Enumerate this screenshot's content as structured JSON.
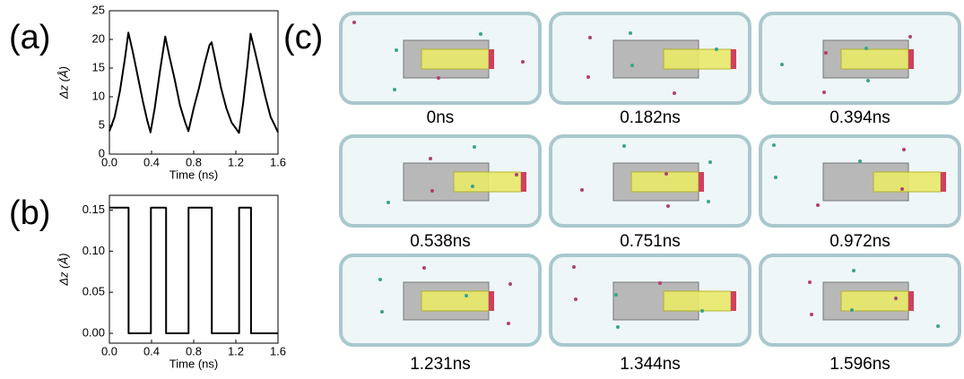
{
  "panel_labels": [
    "(a)",
    "(b)",
    "(c)"
  ],
  "chart_data": [
    {
      "type": "line",
      "xlabel": "Time (ns)",
      "ylabel": "Δz (Å)",
      "x": [
        0,
        0.05,
        0.1,
        0.15,
        0.18,
        0.22,
        0.27,
        0.32,
        0.36,
        0.39,
        0.43,
        0.48,
        0.53,
        0.57,
        0.62,
        0.67,
        0.72,
        0.75,
        0.8,
        0.85,
        0.9,
        0.95,
        0.97,
        1.01,
        1.06,
        1.11,
        1.16,
        1.2,
        1.23,
        1.27,
        1.31,
        1.34,
        1.38,
        1.43,
        1.48,
        1.53,
        1.57,
        1.6
      ],
      "series": [
        {
          "color": "#000000",
          "values": [
            4,
            6.5,
            11,
            17,
            21.2,
            18,
            13.5,
            9,
            5.8,
            3.8,
            8,
            14.5,
            20.5,
            17,
            13,
            8.5,
            5.5,
            4,
            8,
            11.5,
            15.5,
            19,
            19.5,
            16,
            11.5,
            8,
            5.5,
            4.5,
            3.7,
            9,
            15.5,
            21,
            18,
            14,
            10,
            6.5,
            5,
            3.8
          ]
        }
      ],
      "xlim": [
        0,
        1.6
      ],
      "xticks": [
        {
          "value": 0,
          "label": "0.0"
        },
        0.4,
        0.8,
        1.2,
        1.6
      ],
      "ylim": [
        0,
        25
      ],
      "yticks": [
        0,
        5,
        10,
        15,
        20,
        25
      ]
    },
    {
      "type": "line",
      "xlabel": "Time (ns)",
      "ylabel": "Δz (Å)",
      "x": [
        0,
        0.182,
        0.182,
        0.394,
        0.394,
        0.538,
        0.538,
        0.751,
        0.751,
        0.972,
        0.972,
        1.231,
        1.231,
        1.344,
        1.344,
        1.6
      ],
      "series": [
        {
          "color": "#000000",
          "values": [
            0.153,
            0.153,
            0,
            0,
            0.153,
            0.153,
            0,
            0,
            0.153,
            0.153,
            0,
            0,
            0.153,
            0.153,
            0,
            0
          ]
        }
      ],
      "xlim": [
        0,
        1.6
      ],
      "xticks": [
        {
          "value": 0,
          "label": "0.0"
        },
        0.4,
        0.8,
        1.2,
        1.6
      ],
      "ylim": [
        -0.012,
        0.168
      ],
      "yticks": [
        {
          "value": 0,
          "label": "0.00"
        },
        0.05,
        {
          "value": 0.1,
          "label": "0.10"
        },
        0.15
      ]
    }
  ],
  "snapshots": [
    "0ns",
    "0.182ns",
    "0.394ns",
    "0.538ns",
    "0.751ns",
    "0.972ns",
    "1.231ns",
    "1.344ns",
    "1.596ns"
  ]
}
